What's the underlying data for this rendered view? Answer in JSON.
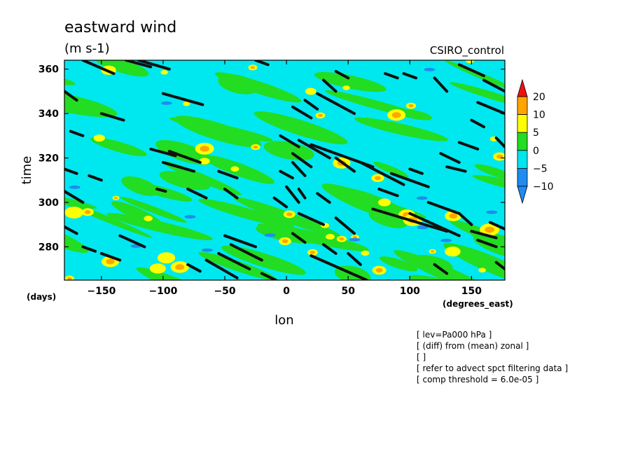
{
  "chart_data": {
    "type": "heatmap",
    "title": "eastward wind",
    "subtitle": "(m s-1)",
    "dataset_label": "CSIRO_control",
    "xlabel": "lon",
    "xunit": "(degrees_east)",
    "ylabel": "time",
    "yunit": "(days)",
    "xlim": [
      -180,
      177
    ],
    "ylim": [
      265,
      364
    ],
    "xticks": [
      -150,
      -100,
      -50,
      0,
      50,
      100,
      150
    ],
    "yticks": [
      280,
      300,
      320,
      340,
      360
    ],
    "colorbar": {
      "levels": [
        -10,
        -5,
        0,
        5,
        10,
        20
      ],
      "labels": [
        "20",
        "10",
        "5",
        "0",
        "-5",
        "-10"
      ],
      "colors": [
        "#1e8cf0",
        "#00e5ee",
        "#22dd22",
        "#ffff00",
        "#ffa500",
        "#ee1111"
      ]
    },
    "overlay_segments": [
      [
        -165,
        364,
        -140,
        358
      ],
      [
        -120,
        364,
        -95,
        360
      ],
      [
        -100,
        349,
        -68,
        344
      ],
      [
        -180,
        350,
        -170,
        346
      ],
      [
        -150,
        340,
        -132,
        337
      ],
      [
        -175,
        332,
        -165,
        330
      ],
      [
        -110,
        324,
        -90,
        321
      ],
      [
        -95,
        323,
        -70,
        318
      ],
      [
        -100,
        318,
        -75,
        314
      ],
      [
        -180,
        315,
        -170,
        313
      ],
      [
        -160,
        312,
        -150,
        310
      ],
      [
        -180,
        305,
        -165,
        300
      ],
      [
        -105,
        306,
        -98,
        305
      ],
      [
        -80,
        306,
        -65,
        302
      ],
      [
        -50,
        306,
        -40,
        302
      ],
      [
        -180,
        289,
        -170,
        286
      ],
      [
        -165,
        280,
        -155,
        278
      ],
      [
        -150,
        277,
        -135,
        274
      ],
      [
        -135,
        285,
        -115,
        280
      ],
      [
        -50,
        285,
        -25,
        280
      ],
      [
        -45,
        281,
        -20,
        274
      ],
      [
        -55,
        277,
        -30,
        270
      ],
      [
        -65,
        274,
        -40,
        266
      ],
      [
        -80,
        272,
        -70,
        269
      ],
      [
        -20,
        268,
        -5,
        264
      ],
      [
        -25,
        364,
        -15,
        362
      ],
      [
        -5,
        330,
        10,
        325
      ],
      [
        10,
        328,
        35,
        320
      ],
      [
        20,
        326,
        70,
        316
      ],
      [
        5,
        322,
        20,
        316
      ],
      [
        40,
        320,
        55,
        314
      ],
      [
        60,
        318,
        95,
        308
      ],
      [
        -10,
        302,
        0,
        298
      ],
      [
        0,
        307,
        10,
        300
      ],
      [
        10,
        306,
        15,
        302
      ],
      [
        25,
        304,
        35,
        300
      ],
      [
        10,
        295,
        30,
        290
      ],
      [
        40,
        293,
        55,
        286
      ],
      [
        5,
        286,
        15,
        282
      ],
      [
        30,
        281,
        40,
        277
      ],
      [
        20,
        276,
        65,
        265
      ],
      [
        50,
        277,
        60,
        272
      ],
      [
        70,
        297,
        130,
        287
      ],
      [
        100,
        295,
        140,
        285
      ],
      [
        115,
        300,
        140,
        295
      ],
      [
        140,
        295,
        150,
        290
      ],
      [
        150,
        287,
        170,
        284
      ],
      [
        165,
        291,
        177,
        288
      ],
      [
        75,
        306,
        90,
        303
      ],
      [
        85,
        313,
        115,
        307
      ],
      [
        100,
        315,
        110,
        313
      ],
      [
        125,
        322,
        140,
        318
      ],
      [
        130,
        316,
        145,
        314
      ],
      [
        140,
        327,
        155,
        324
      ],
      [
        150,
        337,
        160,
        334
      ],
      [
        155,
        345,
        177,
        340
      ],
      [
        160,
        355,
        177,
        350
      ],
      [
        140,
        362,
        160,
        357
      ],
      [
        120,
        356,
        130,
        350
      ],
      [
        95,
        358,
        105,
        356
      ],
      [
        80,
        358,
        90,
        356
      ],
      [
        40,
        359,
        50,
        356
      ],
      [
        30,
        355,
        40,
        350
      ],
      [
        15,
        346,
        25,
        342
      ],
      [
        25,
        349,
        35,
        346
      ],
      [
        35,
        346,
        55,
        340
      ],
      [
        5,
        343,
        20,
        338
      ],
      [
        155,
        283,
        170,
        280
      ],
      [
        170,
        273,
        177,
        270
      ],
      [
        5,
        318,
        15,
        312
      ],
      [
        -5,
        314,
        5,
        311
      ],
      [
        -55,
        314,
        -40,
        311
      ],
      [
        120,
        272,
        130,
        268
      ],
      [
        -130,
        364,
        -110,
        361
      ],
      [
        170,
        329,
        177,
        325
      ]
    ]
  },
  "notes": [
    "[ lev=Pa000 hPa ]",
    "[ (diff) from (mean) zonal ]",
    "[  ]",
    "[ refer to advect spct filtering data ]",
    "[ comp threshold = 6.0e-05 ]"
  ]
}
